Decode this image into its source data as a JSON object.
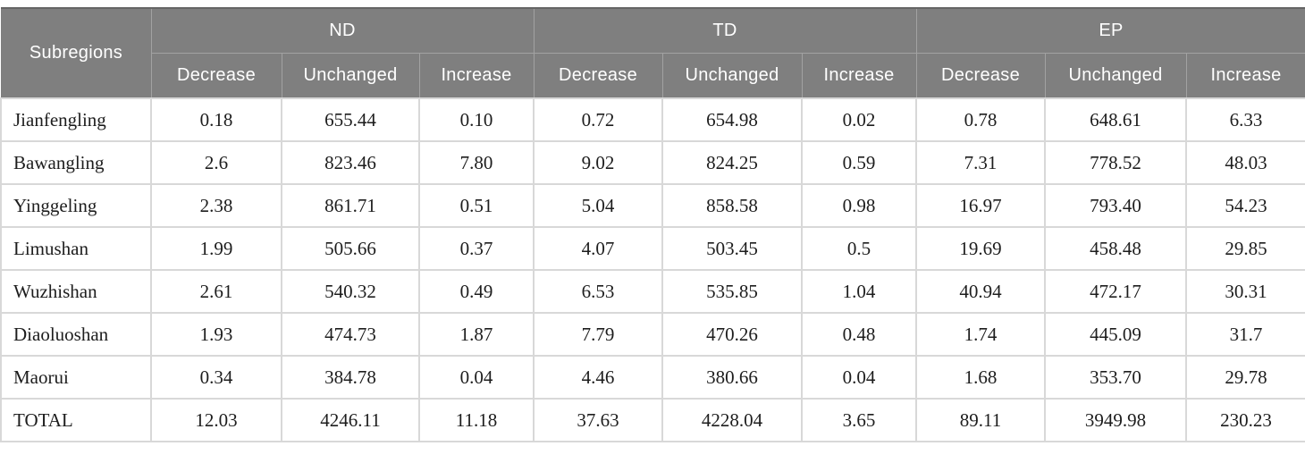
{
  "chart_data": {
    "type": "table",
    "row_header": "Subregions",
    "column_groups": [
      {
        "label": "ND"
      },
      {
        "label": "TD"
      },
      {
        "label": "EP"
      }
    ],
    "sub_columns": [
      "Decrease",
      "Unchanged",
      "Increase"
    ],
    "rows": [
      {
        "name": "Jianfengling",
        "values": [
          "0.18",
          "655.44",
          "0.10",
          "0.72",
          "654.98",
          "0.02",
          "0.78",
          "648.61",
          "6.33"
        ]
      },
      {
        "name": "Bawangling",
        "values": [
          "2.6",
          "823.46",
          "7.80",
          "9.02",
          "824.25",
          "0.59",
          "7.31",
          "778.52",
          "48.03"
        ]
      },
      {
        "name": "Yinggeling",
        "values": [
          "2.38",
          "861.71",
          "0.51",
          "5.04",
          "858.58",
          "0.98",
          "16.97",
          "793.40",
          "54.23"
        ]
      },
      {
        "name": "Limushan",
        "values": [
          "1.99",
          "505.66",
          "0.37",
          "4.07",
          "503.45",
          "0.5",
          "19.69",
          "458.48",
          "29.85"
        ]
      },
      {
        "name": "Wuzhishan",
        "values": [
          "2.61",
          "540.32",
          "0.49",
          "6.53",
          "535.85",
          "1.04",
          "40.94",
          "472.17",
          "30.31"
        ]
      },
      {
        "name": "Diaoluoshan",
        "values": [
          "1.93",
          "474.73",
          "1.87",
          "7.79",
          "470.26",
          "0.48",
          "1.74",
          "445.09",
          "31.7"
        ]
      },
      {
        "name": "Maorui",
        "values": [
          "0.34",
          "384.78",
          "0.04",
          "4.46",
          "380.66",
          "0.04",
          "1.68",
          "353.70",
          "29.78"
        ]
      },
      {
        "name": "TOTAL",
        "values": [
          "12.03",
          "4246.11",
          "11.18",
          "37.63",
          "4228.04",
          "3.65",
          "89.11",
          "3949.98",
          "230.23"
        ]
      }
    ]
  },
  "colors": {
    "header_bg": "#7f7f7f",
    "header_text": "#ffffff",
    "header_divider": "#a2a2a2",
    "header_top_border": "#656565",
    "body_border": "#d8d8d8",
    "body_text": "#1d1d1d",
    "body_bg": "#ffffff"
  }
}
